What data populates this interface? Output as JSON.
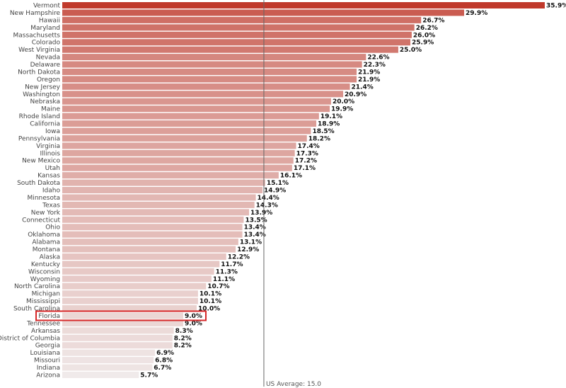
{
  "chart_data": {
    "type": "bar",
    "orientation": "horizontal",
    "categories": [
      "Vermont",
      "New Hampshire",
      "Hawaii",
      "Maryland",
      "Massachusetts",
      "Colorado",
      "West Virginia",
      "Nevada",
      "Delaware",
      "North Dakota",
      "Oregon",
      "New Jersey",
      "Washington",
      "Nebraska",
      "Maine",
      "Rhode Island",
      "California",
      "Iowa",
      "Pennsylvania",
      "Virginia",
      "Illinois",
      "New Mexico",
      "Utah",
      "Kansas",
      "South Dakota",
      "Idaho",
      "Minnesota",
      "Texas",
      "New York",
      "Connecticut",
      "Ohio",
      "Oklahoma",
      "Alabama",
      "Montana",
      "Alaska",
      "Kentucky",
      "Wisconsin",
      "Wyoming",
      "North Carolina",
      "Michigan",
      "Mississippi",
      "South Carolina",
      "Florida",
      "Tennessee",
      "Arkansas",
      "District of Columbia",
      "Georgia",
      "Louisiana",
      "Missouri",
      "Indiana",
      "Arizona"
    ],
    "values": [
      35.9,
      29.9,
      26.7,
      26.2,
      26.0,
      25.9,
      25.0,
      22.6,
      22.3,
      21.9,
      21.9,
      21.4,
      20.9,
      20.0,
      19.9,
      19.1,
      18.9,
      18.5,
      18.2,
      17.4,
      17.3,
      17.2,
      17.1,
      16.1,
      15.1,
      14.9,
      14.4,
      14.3,
      13.9,
      13.5,
      13.4,
      13.4,
      13.1,
      12.9,
      12.2,
      11.7,
      11.3,
      11.1,
      10.7,
      10.1,
      10.1,
      10.0,
      9.0,
      9.0,
      8.3,
      8.2,
      8.2,
      6.9,
      6.8,
      6.7,
      5.7
    ],
    "value_labels": [
      "35.9%",
      "29.9%",
      "26.7%",
      "26.2%",
      "26.0%",
      "25.9%",
      "25.0%",
      "22.6%",
      "22.3%",
      "21.9%",
      "21.9%",
      "21.4%",
      "20.9%",
      "20.0%",
      "19.9%",
      "19.1%",
      "18.9%",
      "18.5%",
      "18.2%",
      "17.4%",
      "17.3%",
      "17.2%",
      "17.1%",
      "16.1%",
      "15.1%",
      "14.9%",
      "14.4%",
      "14.3%",
      "13.9%",
      "13.5%",
      "13.4%",
      "13.4%",
      "13.1%",
      "12.9%",
      "12.2%",
      "11.7%",
      "11.3%",
      "11.1%",
      "10.7%",
      "10.1%",
      "10.1%",
      "10.0%",
      "9.0%",
      "9.0%",
      "8.3%",
      "8.2%",
      "8.2%",
      "6.9%",
      "6.8%",
      "6.7%",
      "5.7%"
    ],
    "xlim": [
      0,
      35.9
    ],
    "reference_line": {
      "value": 15.0,
      "label": "US Average: 15.0"
    },
    "highlighted_category": "Florida",
    "colors": {
      "high": "#c0392b",
      "low": "#f1eeee",
      "highlight_box": "#d62728",
      "reference_line": "#666666"
    },
    "grid": false,
    "legend": "none"
  }
}
